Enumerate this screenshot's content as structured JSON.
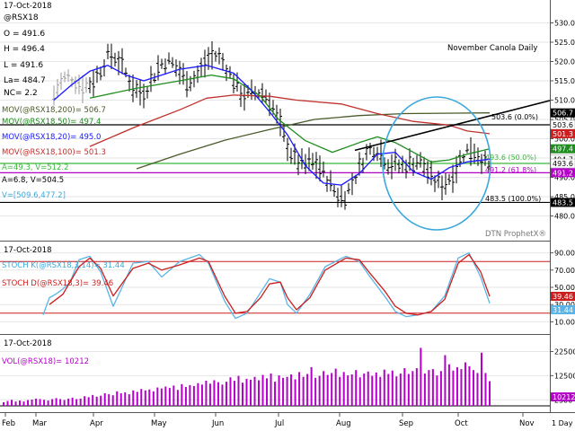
{
  "header": {
    "date": "17-Oct-2018",
    "symbol": "@RSX18",
    "open": "O = 491.6",
    "high": "H = 496.4",
    "low": "L = 491.6",
    "last": "La= 484.7",
    "net_change": "NC= 2.2",
    "title": "November Canola Daily"
  },
  "legend": {
    "ma200": "MOV(@RSX18,200)= 506.7",
    "ma50": "MOV(@RSX18,50)= 497.4",
    "ma20": "MOV(@RSX18,20)= 495.0",
    "ma100": "MOV(@RSX18,100)= 501.3",
    "a_line": "A=49.3, V=512.2",
    "b_line": "A=6.8, V=504.5",
    "c_line": "V=[509.6,477.2]"
  },
  "annotations": {
    "fib0": "503.6 (0.0%)",
    "fib50": "493.6 (50.0%)",
    "fib618": "491.2 (61.8%)",
    "fib100": "483.5 (100.0%)",
    "watermark": "DTN ProphetX®"
  },
  "stoch": {
    "date": "17-Oct-2018",
    "k_label": "STOCH K(@RSX18,3,14)= 31.44",
    "d_label": "STOCH D(@RSX18,3)= 39.46",
    "k_box": "31.44",
    "d_box": "39.46"
  },
  "volume": {
    "date": "17-Oct-2018",
    "label": "VOL(@RSX18)= 10212",
    "box": "10212"
  },
  "footer": {
    "interval": "1 Day",
    "months": [
      "Feb",
      "Mar",
      "Apr",
      "May",
      "Jun",
      "Jul",
      "Aug",
      "Sep",
      "Oct",
      "Nov"
    ]
  },
  "colors": {
    "ma20": "#1a1aff",
    "ma50": "#1e8c1e",
    "ma100": "#c0302c",
    "ma200": "#4a5a2a",
    "stoch_k": "#5ab4e6",
    "stoch_d": "#cc1e1e",
    "volume": "#b400c8",
    "circle": "#3aa8dc"
  },
  "chart_data": [
    {
      "type": "line",
      "title": "November Canola Daily",
      "ylim": [
        475,
        535
      ],
      "yticks": [
        480.0,
        485.0,
        490.0,
        495.0,
        500.0,
        505.0,
        510.0,
        515.0,
        520.0,
        525.0,
        530.0
      ],
      "ytick_labels": [
        "480.0",
        "485.0",
        "490.0",
        "495.0",
        "500.0",
        "505.0",
        "510.0",
        "515.0",
        "520.0",
        "525.0",
        "530.0"
      ],
      "price_boxes": [
        {
          "label": "506.7",
          "value": 506.7,
          "color": "#000000"
        },
        {
          "label": "503.6",
          "value": 503.6,
          "color": "#ffffff"
        },
        {
          "label": "501.3",
          "value": 501.3,
          "color": "#cc1e1e"
        },
        {
          "label": "497.4",
          "value": 497.4,
          "color": "#1e8c1e"
        },
        {
          "label": "494.7",
          "value": 494.7,
          "color": "#ffffff"
        },
        {
          "label": "493.6",
          "value": 493.6,
          "color": "#ffffff"
        },
        {
          "label": "491.2",
          "value": 491.2,
          "color": "#b400c8"
        },
        {
          "label": "483.5",
          "value": 483.5,
          "color": "#000000"
        }
      ],
      "horizontal_lines": [
        503.6,
        493.6,
        491.2,
        483.5
      ],
      "trendline": [
        [
          395,
          497.0
        ],
        [
          550,
          506.2
        ]
      ],
      "series": [
        {
          "name": "MOV(@RSX18,200)",
          "values": [
            [
              152,
              492.2
            ],
            [
              200,
              496.0
            ],
            [
              250,
              499.6
            ],
            [
              300,
              502.4
            ],
            [
              350,
              505.0
            ],
            [
              400,
              506.0
            ],
            [
              450,
              506.5
            ],
            [
              545,
              506.7
            ]
          ]
        },
        {
          "name": "MOV(@RSX18,100)",
          "values": [
            [
              100,
              498.0
            ],
            [
              150,
              503.0
            ],
            [
              200,
              507.5
            ],
            [
              230,
              510.5
            ],
            [
              260,
              511.3
            ],
            [
              300,
              511.0
            ],
            [
              330,
              510.0
            ],
            [
              380,
              509.0
            ],
            [
              420,
              506.5
            ],
            [
              460,
              504.5
            ],
            [
              500,
              503.5
            ],
            [
              520,
              502.0
            ],
            [
              545,
              501.3
            ]
          ]
        },
        {
          "name": "MOV(@RSX18,50)",
          "values": [
            [
              100,
              510.5
            ],
            [
              150,
              513.0
            ],
            [
              200,
              515.0
            ],
            [
              235,
              516.5
            ],
            [
              260,
              515.5
            ],
            [
              290,
              511.0
            ],
            [
              310,
              505.0
            ],
            [
              340,
              499.5
            ],
            [
              370,
              496.5
            ],
            [
              400,
              499.0
            ],
            [
              420,
              500.5
            ],
            [
              440,
              499.0
            ],
            [
              460,
              496.5
            ],
            [
              480,
              494.0
            ],
            [
              500,
              494.5
            ],
            [
              520,
              496.0
            ],
            [
              545,
              497.4
            ]
          ]
        },
        {
          "name": "MOV(@RSX18,20)",
          "values": [
            [
              60,
              510.0
            ],
            [
              80,
              514.0
            ],
            [
              100,
              517.5
            ],
            [
              120,
              519.0
            ],
            [
              140,
              516.5
            ],
            [
              160,
              515.0
            ],
            [
              200,
              518.0
            ],
            [
              230,
              519.0
            ],
            [
              260,
              517.0
            ],
            [
              280,
              512.5
            ],
            [
              300,
              507.0
            ],
            [
              320,
              501.0
            ],
            [
              340,
              493.0
            ],
            [
              360,
              488.5
            ],
            [
              380,
              488.0
            ],
            [
              400,
              491.0
            ],
            [
              420,
              496.0
            ],
            [
              440,
              496.5
            ],
            [
              460,
              491.5
            ],
            [
              480,
              489.5
            ],
            [
              500,
              492.5
            ],
            [
              520,
              494.0
            ],
            [
              545,
              494.7
            ]
          ]
        }
      ]
    },
    {
      "type": "line",
      "title": "STOCH",
      "ylim": [
        0,
        100
      ],
      "yticks": [
        10,
        30,
        50,
        70,
        90
      ],
      "ytick_labels": [
        "10.00",
        "30.00",
        "50.00",
        "70.00",
        "90.00"
      ],
      "horizontal_lines": [
        80,
        20
      ],
      "series": [
        {
          "name": "STOCH K",
          "values": [
            [
              48,
              18
            ],
            [
              55,
              38
            ],
            [
              62,
              42
            ],
            [
              70,
              48
            ],
            [
              78,
              56
            ],
            [
              88,
              82
            ],
            [
              100,
              86
            ],
            [
              112,
              68
            ],
            [
              126,
              28
            ],
            [
              135,
              48
            ],
            [
              148,
              78
            ],
            [
              165,
              80
            ],
            [
              180,
              62
            ],
            [
              200,
              80
            ],
            [
              222,
              88
            ],
            [
              232,
              78
            ],
            [
              250,
              34
            ],
            [
              262,
              14
            ],
            [
              275,
              20
            ],
            [
              290,
              44
            ],
            [
              300,
              60
            ],
            [
              312,
              56
            ],
            [
              320,
              30
            ],
            [
              330,
              20
            ],
            [
              345,
              42
            ],
            [
              362,
              74
            ],
            [
              385,
              86
            ],
            [
              400,
              80
            ],
            [
              412,
              62
            ],
            [
              428,
              40
            ],
            [
              440,
              22
            ],
            [
              452,
              16
            ],
            [
              465,
              18
            ],
            [
              480,
              22
            ],
            [
              495,
              40
            ],
            [
              510,
              84
            ],
            [
              522,
              90
            ],
            [
              535,
              62
            ],
            [
              545,
              31.44
            ]
          ]
        },
        {
          "name": "STOCH D",
          "values": [
            [
              55,
              30
            ],
            [
              70,
              42
            ],
            [
              88,
              74
            ],
            [
              100,
              84
            ],
            [
              112,
              72
            ],
            [
              126,
              40
            ],
            [
              148,
              72
            ],
            [
              165,
              78
            ],
            [
              180,
              70
            ],
            [
              200,
              76
            ],
            [
              222,
              84
            ],
            [
              232,
              80
            ],
            [
              250,
              40
            ],
            [
              262,
              20
            ],
            [
              275,
              22
            ],
            [
              290,
              38
            ],
            [
              300,
              54
            ],
            [
              312,
              56
            ],
            [
              320,
              38
            ],
            [
              330,
              24
            ],
            [
              345,
              38
            ],
            [
              362,
              70
            ],
            [
              385,
              84
            ],
            [
              400,
              82
            ],
            [
              412,
              66
            ],
            [
              428,
              46
            ],
            [
              440,
              28
            ],
            [
              452,
              20
            ],
            [
              465,
              18
            ],
            [
              480,
              22
            ],
            [
              495,
              36
            ],
            [
              510,
              78
            ],
            [
              522,
              88
            ],
            [
              535,
              68
            ],
            [
              545,
              39.46
            ]
          ]
        }
      ]
    },
    {
      "type": "bar",
      "title": "VOL",
      "yticks": [
        2500,
        12500,
        22500
      ],
      "ytick_labels": [
        "2500",
        "12500",
        "22500"
      ],
      "ylim": [
        0,
        27500
      ],
      "latest": 10212,
      "values": [
        1500,
        2000,
        2500,
        1800,
        2200,
        1800,
        2400,
        2600,
        3000,
        2800,
        2500,
        2200,
        2800,
        3200,
        2800,
        2400,
        3000,
        3400,
        2800,
        3000,
        4000,
        3600,
        4500,
        3800,
        4200,
        5200,
        4800,
        4400,
        6000,
        5200,
        5600,
        4800,
        6400,
        5800,
        7000,
        6400,
        6800,
        6000,
        7600,
        7200,
        8000,
        7400,
        8400,
        6600,
        9000,
        7800,
        8600,
        8200,
        9400,
        8800,
        10400,
        9200,
        10600,
        9800,
        8800,
        10000,
        11800,
        10400,
        12400,
        9600,
        11200,
        10800,
        12000,
        10600,
        12800,
        11400,
        13400,
        10000,
        12600,
        11600,
        12000,
        13000,
        11000,
        14000,
        12000,
        13200,
        16000,
        11600,
        12400,
        14400,
        12800,
        13600,
        15400,
        12000,
        14000,
        12600,
        13000,
        14800,
        11800,
        13400,
        14200,
        12400,
        13800,
        12000,
        15000,
        13200,
        14600,
        12200,
        13400,
        15600,
        13200,
        14400,
        15600,
        24000,
        13400,
        14800,
        15200,
        12600,
        14400,
        21000,
        17200,
        14600,
        16000,
        15200,
        18000,
        16400,
        14800,
        13600,
        22000,
        13600,
        10212
      ]
    }
  ]
}
